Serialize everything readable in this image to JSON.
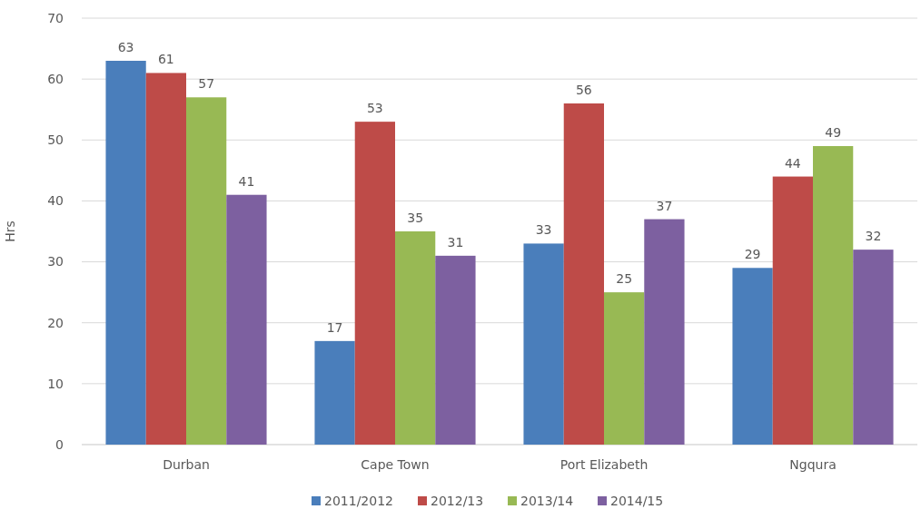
{
  "chart_data": {
    "type": "bar",
    "ylabel": "Hrs",
    "categories": [
      "Durban",
      "Cape Town",
      "Port Elizabeth",
      "Ngqura"
    ],
    "series": [
      {
        "name": "2011/2012",
        "color": "#4a7ebb",
        "values": [
          63,
          17,
          33,
          29
        ]
      },
      {
        "name": "2012/13",
        "color": "#be4b48",
        "values": [
          61,
          53,
          56,
          44
        ]
      },
      {
        "name": "2013/14",
        "color": "#98b954",
        "values": [
          57,
          35,
          25,
          49
        ]
      },
      {
        "name": "2014/15",
        "color": "#7d60a0",
        "values": [
          41,
          31,
          37,
          32
        ]
      }
    ],
    "ylim": [
      0,
      70
    ],
    "yticks": [
      0,
      10,
      20,
      30,
      40,
      50,
      60,
      70
    ],
    "grid": "y",
    "legend": "bottom",
    "data_labels": true
  }
}
